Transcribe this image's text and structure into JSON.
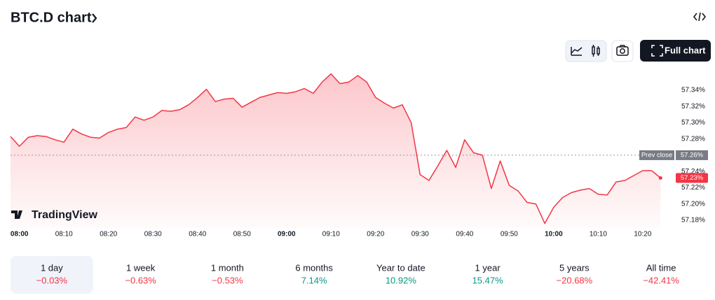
{
  "chart_data": {
    "type": "area",
    "title": "BTC.D chart",
    "brand": "TradingView",
    "button": "Full chart",
    "color": "#f23645",
    "x": [
      "07:58",
      "08:00",
      "08:02",
      "08:04",
      "08:06",
      "08:08",
      "08:10",
      "08:12",
      "08:14",
      "08:16",
      "08:18",
      "08:20",
      "08:22",
      "08:24",
      "08:26",
      "08:28",
      "08:30",
      "08:32",
      "08:34",
      "08:36",
      "08:38",
      "08:40",
      "08:42",
      "08:44",
      "08:46",
      "08:48",
      "08:50",
      "08:52",
      "08:54",
      "08:56",
      "08:58",
      "09:00",
      "09:02",
      "09:04",
      "09:06",
      "09:08",
      "09:10",
      "09:12",
      "09:14",
      "09:16",
      "09:18",
      "09:20",
      "09:22",
      "09:24",
      "09:26",
      "09:28",
      "09:30",
      "09:32",
      "09:34",
      "09:36",
      "09:38",
      "09:40",
      "09:42",
      "09:44",
      "09:46",
      "09:48",
      "09:50",
      "09:52",
      "09:54",
      "09:56",
      "09:58",
      "10:00",
      "10:02",
      "10:04",
      "10:06",
      "10:08",
      "10:10",
      "10:12",
      "10:14",
      "10:16",
      "10:18",
      "10:20",
      "10:22",
      "10:24"
    ],
    "values": [
      57.283,
      57.271,
      57.282,
      57.284,
      57.283,
      57.279,
      57.276,
      57.292,
      57.286,
      57.282,
      57.281,
      57.288,
      57.292,
      57.294,
      57.307,
      57.303,
      57.307,
      57.315,
      57.314,
      57.316,
      57.322,
      57.331,
      57.341,
      57.326,
      57.329,
      57.33,
      57.319,
      57.325,
      57.331,
      57.334,
      57.337,
      57.336,
      57.338,
      57.342,
      57.336,
      57.35,
      57.36,
      57.348,
      57.35,
      57.358,
      57.35,
      57.331,
      57.324,
      57.318,
      57.322,
      57.3,
      57.236,
      57.229,
      57.247,
      57.266,
      57.245,
      57.279,
      57.263,
      57.26,
      57.219,
      57.253,
      57.223,
      57.216,
      57.202,
      57.2,
      57.176,
      57.196,
      57.208,
      57.214,
      57.217,
      57.219,
      57.212,
      57.211,
      57.227,
      57.229,
      57.235,
      57.241,
      57.241,
      57.232
    ],
    "value_labels": [
      null,
      null,
      null,
      null,
      null,
      null,
      null,
      null,
      null,
      null,
      null,
      null,
      null,
      null,
      null,
      null,
      null,
      null,
      null,
      null,
      null,
      null,
      null,
      null,
      null,
      null,
      null,
      null,
      null,
      null,
      null,
      null,
      null,
      null,
      null,
      null,
      null,
      null,
      null,
      null,
      null,
      null,
      null,
      null,
      null,
      null,
      null,
      null,
      null,
      null,
      null,
      null,
      null,
      null,
      null,
      null,
      null,
      null,
      null,
      null,
      null,
      null,
      null,
      null,
      null,
      null,
      null,
      null,
      null,
      null,
      null,
      null,
      null,
      "57.23%"
    ],
    "xlim": [
      "07:58",
      "10:26"
    ],
    "xticks": [
      "08:00",
      "08:10",
      "08:20",
      "08:30",
      "08:40",
      "08:50",
      "09:00",
      "09:10",
      "09:20",
      "09:30",
      "09:40",
      "09:50",
      "10:00",
      "10:10",
      "10:20"
    ],
    "ylim": [
      57.17,
      57.37
    ],
    "yticks": [
      {
        "value": 57.18,
        "label": "57.18%"
      },
      {
        "value": 57.2,
        "label": "57.20%"
      },
      {
        "value": 57.22,
        "label": "57.22%"
      },
      {
        "value": 57.24,
        "label": "57.24%"
      },
      {
        "value": 57.28,
        "label": "57.28%"
      },
      {
        "value": 57.3,
        "label": "57.30%"
      },
      {
        "value": 57.32,
        "label": "57.32%"
      },
      {
        "value": 57.34,
        "label": "57.34%"
      }
    ],
    "prev_close": {
      "label": "Prev close",
      "value": 57.26,
      "value_label": "57.26%"
    },
    "periods": [
      {
        "label": "1 day",
        "change": "−0.03%"
      },
      {
        "label": "1 week",
        "change": "−0.63%"
      },
      {
        "label": "1 month",
        "change": "−0.53%"
      },
      {
        "label": "6 months",
        "change": "7.14%"
      },
      {
        "label": "Year to date",
        "change": "10.92%"
      },
      {
        "label": "1 year",
        "change": "15.47%"
      },
      {
        "label": "5 years",
        "change": "−20.68%"
      },
      {
        "label": "All time",
        "change": "−42.41%"
      }
    ],
    "selected_period": 0
  }
}
